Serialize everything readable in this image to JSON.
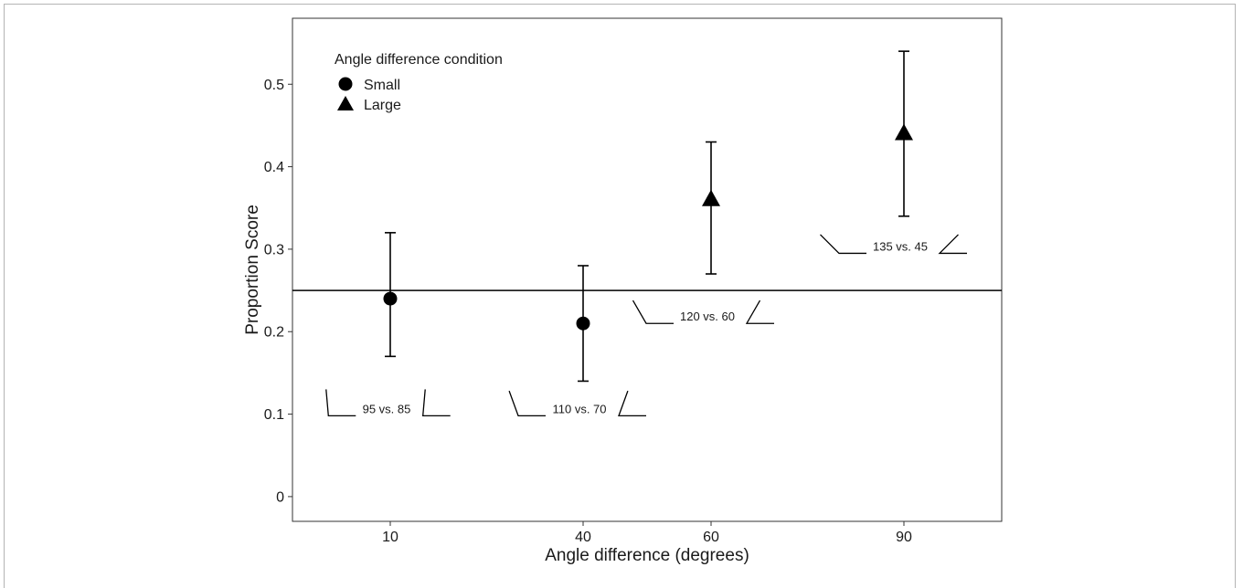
{
  "chart_data": {
    "type": "scatter",
    "title": "",
    "xlabel": "Angle difference (degrees)",
    "ylabel": "Proportion Score",
    "x_categories": [
      "10",
      "40",
      "60",
      "90"
    ],
    "x_scale": "categorical, positioned proportionally to value",
    "ylim": [
      -0.03,
      0.58
    ],
    "yticks": [
      0,
      0.1,
      0.2,
      0.3,
      0.4,
      0.5
    ],
    "ytick_labels": [
      "0",
      "0.1",
      "0.2",
      "0.3",
      "0.4",
      "0.5"
    ],
    "grid": false,
    "reference_line": {
      "y": 0.25
    },
    "legend": {
      "title": "Angle difference condition",
      "position": "top-left",
      "entries": [
        {
          "label": "Small",
          "marker": "circle"
        },
        {
          "label": "Large",
          "marker": "triangle"
        }
      ]
    },
    "series": [
      {
        "name": "Small",
        "marker": "circle",
        "points": [
          {
            "x": 10,
            "y": 0.24,
            "ci_low": 0.17,
            "ci_high": 0.32
          },
          {
            "x": 40,
            "y": 0.21,
            "ci_low": 0.14,
            "ci_high": 0.28
          }
        ]
      },
      {
        "name": "Large",
        "marker": "triangle",
        "points": [
          {
            "x": 60,
            "y": 0.36,
            "ci_low": 0.27,
            "ci_high": 0.43
          },
          {
            "x": 90,
            "y": 0.44,
            "ci_low": 0.34,
            "ci_high": 0.54
          }
        ]
      }
    ],
    "annotations": [
      {
        "text": "95 vs. 85",
        "x": 10,
        "y": 0.098,
        "left_angle": 95,
        "right_angle": 85
      },
      {
        "text": "110 vs. 70",
        "x": 40,
        "y": 0.098,
        "left_angle": 110,
        "right_angle": 70
      },
      {
        "text": "120 vs. 60",
        "x": 60,
        "y": 0.21,
        "left_angle": 120,
        "right_angle": 60
      },
      {
        "text": "135 vs. 45",
        "x": 90,
        "y": 0.295,
        "left_angle": 135,
        "right_angle": 45
      }
    ],
    "color": "#000000"
  }
}
